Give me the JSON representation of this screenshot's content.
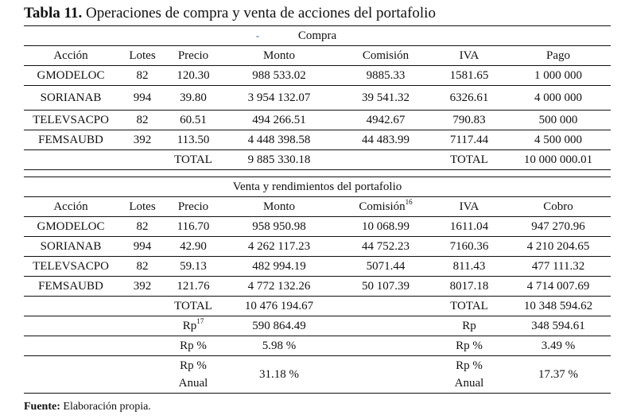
{
  "title": {
    "label": "Tabla 11.",
    "text": "Operaciones de compra y venta de acciones del portafolio"
  },
  "compra": {
    "section_title": "Compra",
    "headers": [
      "Acción",
      "Lotes",
      "Precio",
      "Monto",
      "Comisión",
      "IVA",
      "Pago"
    ],
    "rows": [
      [
        "GMODELOC",
        "82",
        "120.30",
        "988 533.02",
        "9885.33",
        "1581.65",
        "1 000 000"
      ],
      [
        "SORIANAB",
        "994",
        "39.80",
        "3 954 132.07",
        "39 541.32",
        "6326.61",
        "4 000 000"
      ],
      [
        "TELEVSACPO",
        "82",
        "60.51",
        "494 266.51",
        "4942.67",
        "790.83",
        "500 000"
      ],
      [
        "FEMSAUBD",
        "392",
        "113.50",
        "4 448 398.58",
        "44 483.99",
        "7117.44",
        "4 500 000"
      ]
    ],
    "total": {
      "label": "TOTAL",
      "monto": "9 885 330.18",
      "label2": "TOTAL",
      "pago": "10 000 000.01"
    }
  },
  "venta": {
    "section_title": "Venta y rendimientos del portafolio",
    "headers": [
      "Acción",
      "Lotes",
      "Precio",
      "Monto",
      "Comisión",
      "IVA",
      "Cobro"
    ],
    "comision_footnote": "16",
    "rows": [
      [
        "GMODELOC",
        "82",
        "116.70",
        "958 950.98",
        "10 068.99",
        "1611.04",
        "947 270.96"
      ],
      [
        "SORIANAB",
        "994",
        "42.90",
        "4 262 117.23",
        "44 752.23",
        "7160.36",
        "4 210 204.65"
      ],
      [
        "TELEVSACPO",
        "82",
        "59.13",
        "482 994.19",
        "5071.44",
        "811.43",
        "477 111.32"
      ],
      [
        "FEMSAUBD",
        "392",
        "121.76",
        "4 772 132.26",
        "50 107.39",
        "8017.18",
        "4 714 007.69"
      ]
    ],
    "total": {
      "label": "TOTAL",
      "monto": "10 476 194.67",
      "label2": "TOTAL",
      "cobro": "10 348 594.62"
    },
    "rp": {
      "label": "Rp",
      "footnote": "17",
      "monto": "590 864.49",
      "label2": "Rp",
      "cobro": "348 594.61"
    },
    "rp_pct": {
      "label": "Rp %",
      "monto": "5.98 %",
      "label2": "Rp %",
      "cobro": "3.49 %"
    },
    "rp_anual": {
      "label_line1": "Rp %",
      "label_line2": "Anual",
      "monto": "31.18 %",
      "label2_line1": "Rp %",
      "label2_line2": "Anual",
      "cobro": "17.37 %"
    }
  },
  "source": {
    "label": "Fuente:",
    "text": "Elaboración propia."
  }
}
